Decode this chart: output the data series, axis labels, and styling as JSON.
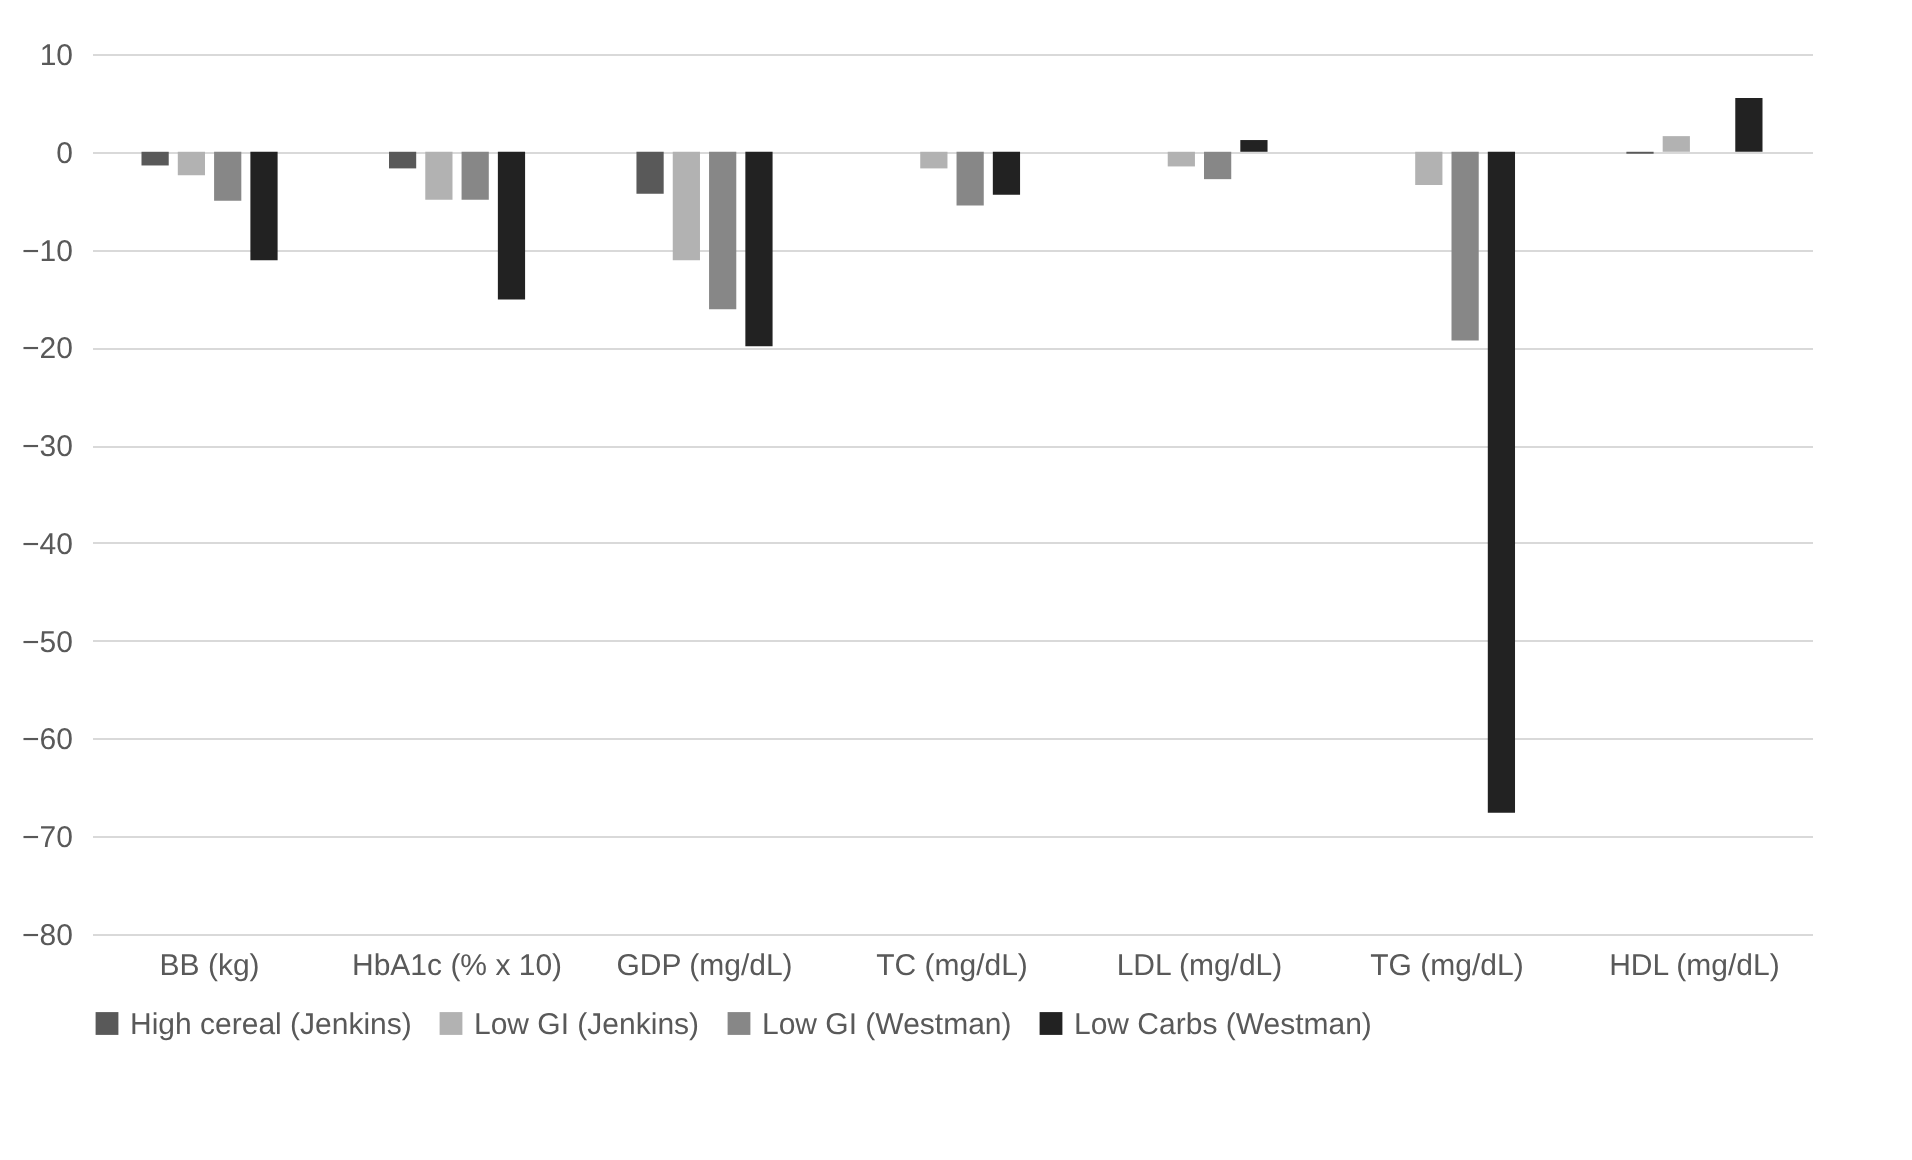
{
  "chart_data": {
    "type": "bar",
    "categories": [
      "BB (kg)",
      "HbA1c (% x 10)",
      "GDP (mg/dL)",
      "TC (mg/dL)",
      "LDL (mg/dL)",
      "TG (mg/dL)",
      "HDL (mg/dL)"
    ],
    "series": [
      {
        "name": "High cereal (Jenkins)",
        "color": "#595959",
        "values": [
          -1.4,
          -1.7,
          -4.3,
          0,
          0,
          0,
          -0.2
        ]
      },
      {
        "name": "Low GI (Jenkins)",
        "color": "#b2b2b2",
        "values": [
          -2.4,
          -4.9,
          -11.1,
          -1.7,
          -1.5,
          -3.4,
          1.6
        ]
      },
      {
        "name": "Low GI (Westman)",
        "color": "#878787",
        "values": [
          -5,
          -4.9,
          -16.1,
          -5.5,
          -2.8,
          -19.3,
          0
        ]
      },
      {
        "name": "Low Carbs (Westman)",
        "color": "#222222",
        "values": [
          -11.1,
          -15.1,
          -19.9,
          -4.4,
          1.2,
          -67.6,
          5.5
        ]
      }
    ],
    "ylim": [
      -80,
      10
    ],
    "yticks": [
      -80,
      -70,
      -60,
      -50,
      -40,
      -30,
      -20,
      -10,
      0,
      10
    ],
    "grid": "y",
    "legend": "bottom"
  }
}
